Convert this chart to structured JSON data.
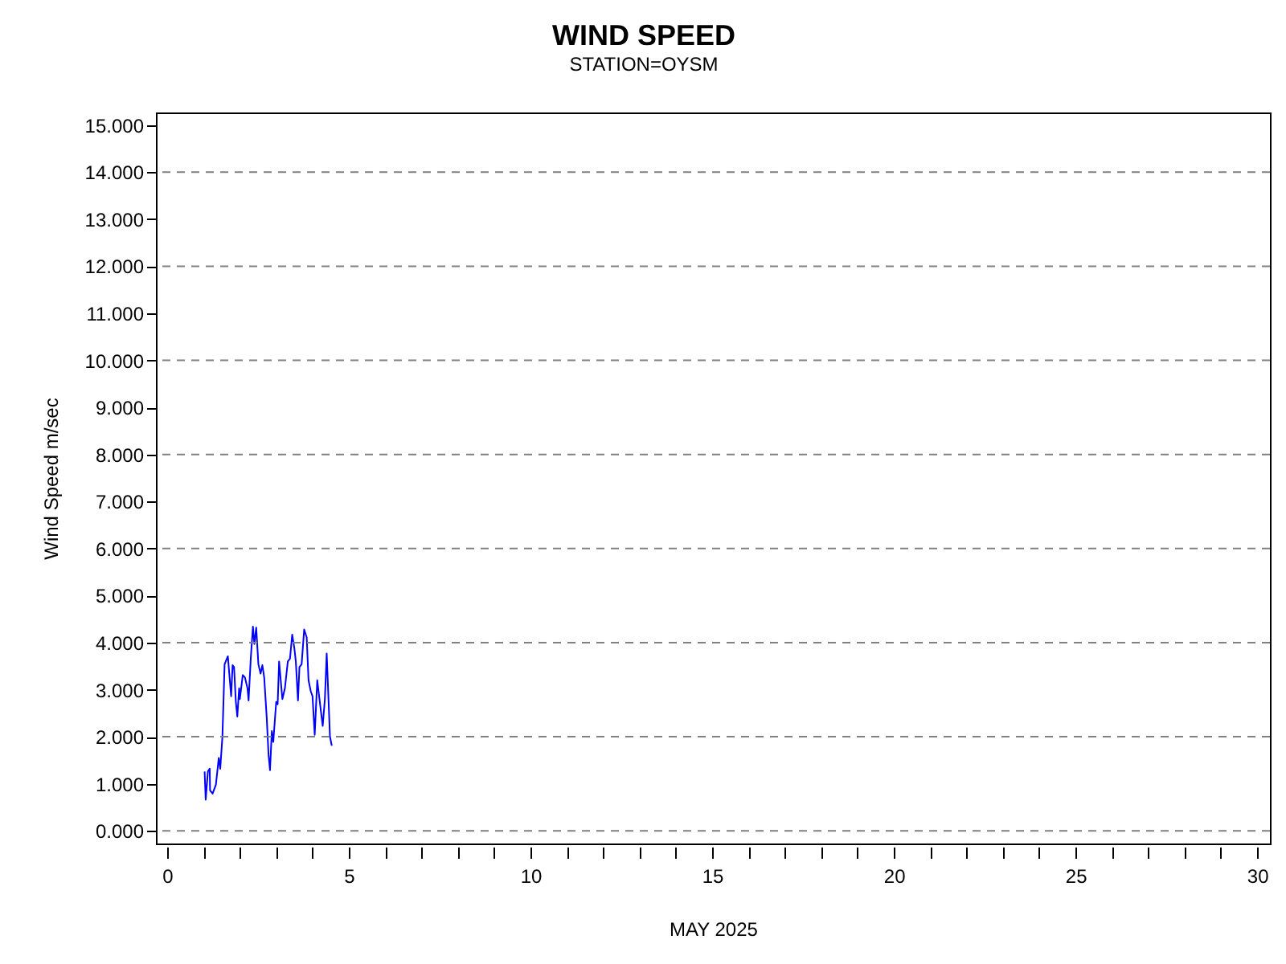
{
  "chart_data": {
    "type": "line",
    "title": "WIND SPEED",
    "subtitle": "STATION=OYSM",
    "xlabel": "MAY 2025",
    "ylabel": "Wind Speed m/sec",
    "xlim": [
      -0.31,
      30.35
    ],
    "ylim": [
      -0.27,
      15.27
    ],
    "xticks": [
      0,
      {
        "value": 1,
        "label": null
      },
      {
        "value": 2,
        "label": null
      },
      {
        "value": 3,
        "label": null
      },
      {
        "value": 4,
        "label": null
      },
      5,
      {
        "value": 6,
        "label": null
      },
      {
        "value": 7,
        "label": null
      },
      {
        "value": 8,
        "label": null
      },
      {
        "value": 9,
        "label": null
      },
      10,
      {
        "value": 11,
        "label": null
      },
      {
        "value": 12,
        "label": null
      },
      {
        "value": 13,
        "label": null
      },
      {
        "value": 14,
        "label": null
      },
      15,
      {
        "value": 16,
        "label": null
      },
      {
        "value": 17,
        "label": null
      },
      {
        "value": 18,
        "label": null
      },
      {
        "value": 19,
        "label": null
      },
      20,
      {
        "value": 21,
        "label": null
      },
      {
        "value": 22,
        "label": null
      },
      {
        "value": 23,
        "label": null
      },
      {
        "value": 24,
        "label": null
      },
      25,
      {
        "value": 26,
        "label": null
      },
      {
        "value": 27,
        "label": null
      },
      {
        "value": 28,
        "label": null
      },
      {
        "value": 29,
        "label": null
      },
      30
    ],
    "yticks": [
      {
        "value": 0,
        "label": "0.000"
      },
      {
        "value": 1,
        "label": "1.000"
      },
      {
        "value": 2,
        "label": "2.000"
      },
      {
        "value": 3,
        "label": "3.000"
      },
      {
        "value": 4,
        "label": "4.000"
      },
      {
        "value": 5,
        "label": "5.000"
      },
      {
        "value": 6,
        "label": "6.000"
      },
      {
        "value": 7,
        "label": "7.000"
      },
      {
        "value": 8,
        "label": "8.000"
      },
      {
        "value": 9,
        "label": "9.000"
      },
      {
        "value": 10,
        "label": "10.000"
      },
      {
        "value": 11,
        "label": "11.000"
      },
      {
        "value": 12,
        "label": "12.000"
      },
      {
        "value": 13,
        "label": "13.000"
      },
      {
        "value": 14,
        "label": "14.000"
      },
      {
        "value": 15,
        "label": "15.000"
      }
    ],
    "grid": "y",
    "marker": "none",
    "line_style": "solid",
    "series": [
      {
        "color": "#0000ff",
        "x": [
          1.03,
          1.06,
          1.12,
          1.17,
          1.18,
          1.25,
          1.34,
          1.42,
          1.46,
          1.52,
          1.58,
          1.67,
          1.76,
          1.8,
          1.84,
          1.89,
          1.93,
          1.98,
          2.0,
          2.08,
          2.14,
          2.21,
          2.24,
          2.3,
          2.36,
          2.4,
          2.45,
          2.51,
          2.57,
          2.62,
          2.67,
          2.74,
          2.79,
          2.83,
          2.88,
          2.92,
          3.0,
          3.04,
          3.08,
          3.17,
          3.24,
          3.32,
          3.38,
          3.44,
          3.5,
          3.54,
          3.6,
          3.64,
          3.7,
          3.77,
          3.84,
          3.89,
          3.95,
          4.0,
          4.06,
          4.13,
          4.2,
          4.28,
          4.34,
          4.39,
          4.48,
          4.53
        ],
        "values": [
          1.26,
          0.66,
          1.26,
          1.32,
          0.86,
          0.79,
          0.98,
          1.55,
          1.32,
          2.0,
          3.54,
          3.71,
          2.86,
          3.52,
          3.48,
          2.74,
          2.43,
          3.03,
          2.8,
          3.31,
          3.26,
          3.03,
          2.77,
          3.66,
          4.34,
          3.97,
          4.32,
          3.54,
          3.34,
          3.52,
          3.26,
          2.4,
          1.61,
          1.29,
          2.12,
          1.89,
          2.74,
          2.69,
          3.6,
          2.8,
          3.03,
          3.6,
          3.66,
          4.17,
          3.88,
          3.6,
          2.77,
          3.48,
          3.54,
          4.28,
          4.11,
          3.2,
          2.97,
          2.86,
          2.04,
          3.2,
          2.74,
          2.23,
          2.8,
          3.77,
          2.0,
          1.81
        ]
      }
    ]
  }
}
